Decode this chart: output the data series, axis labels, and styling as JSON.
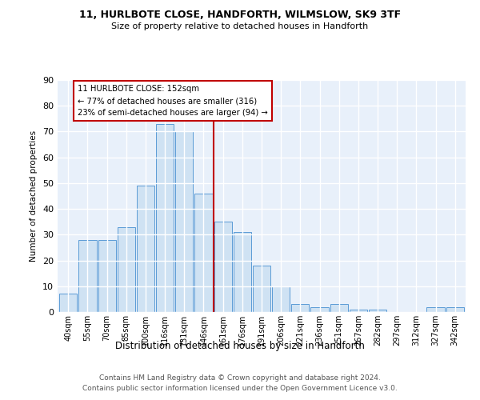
{
  "title1": "11, HURLBOTE CLOSE, HANDFORTH, WILMSLOW, SK9 3TF",
  "title2": "Size of property relative to detached houses in Handforth",
  "xlabel": "Distribution of detached houses by size in Handforth",
  "ylabel": "Number of detached properties",
  "bar_labels": [
    "40sqm",
    "55sqm",
    "70sqm",
    "85sqm",
    "100sqm",
    "116sqm",
    "131sqm",
    "146sqm",
    "161sqm",
    "176sqm",
    "191sqm",
    "206sqm",
    "221sqm",
    "236sqm",
    "251sqm",
    "267sqm",
    "282sqm",
    "297sqm",
    "312sqm",
    "327sqm",
    "342sqm"
  ],
  "bar_heights": [
    7,
    28,
    28,
    33,
    49,
    73,
    70,
    46,
    35,
    31,
    18,
    10,
    3,
    2,
    3,
    1,
    1,
    0,
    0,
    2,
    2
  ],
  "bar_color": "#cfe2f3",
  "bar_edge_color": "#5b9bd5",
  "vline_x": 7.5,
  "vline_color": "#c00000",
  "annotation_text": "11 HURLBOTE CLOSE: 152sqm\n← 77% of detached houses are smaller (316)\n23% of semi-detached houses are larger (94) →",
  "annotation_box_color": "#c00000",
  "ylim": [
    0,
    90
  ],
  "yticks": [
    0,
    10,
    20,
    30,
    40,
    50,
    60,
    70,
    80,
    90
  ],
  "bg_color": "#e8f0fa",
  "grid_color": "#ffffff",
  "footer1": "Contains HM Land Registry data © Crown copyright and database right 2024.",
  "footer2": "Contains public sector information licensed under the Open Government Licence v3.0."
}
